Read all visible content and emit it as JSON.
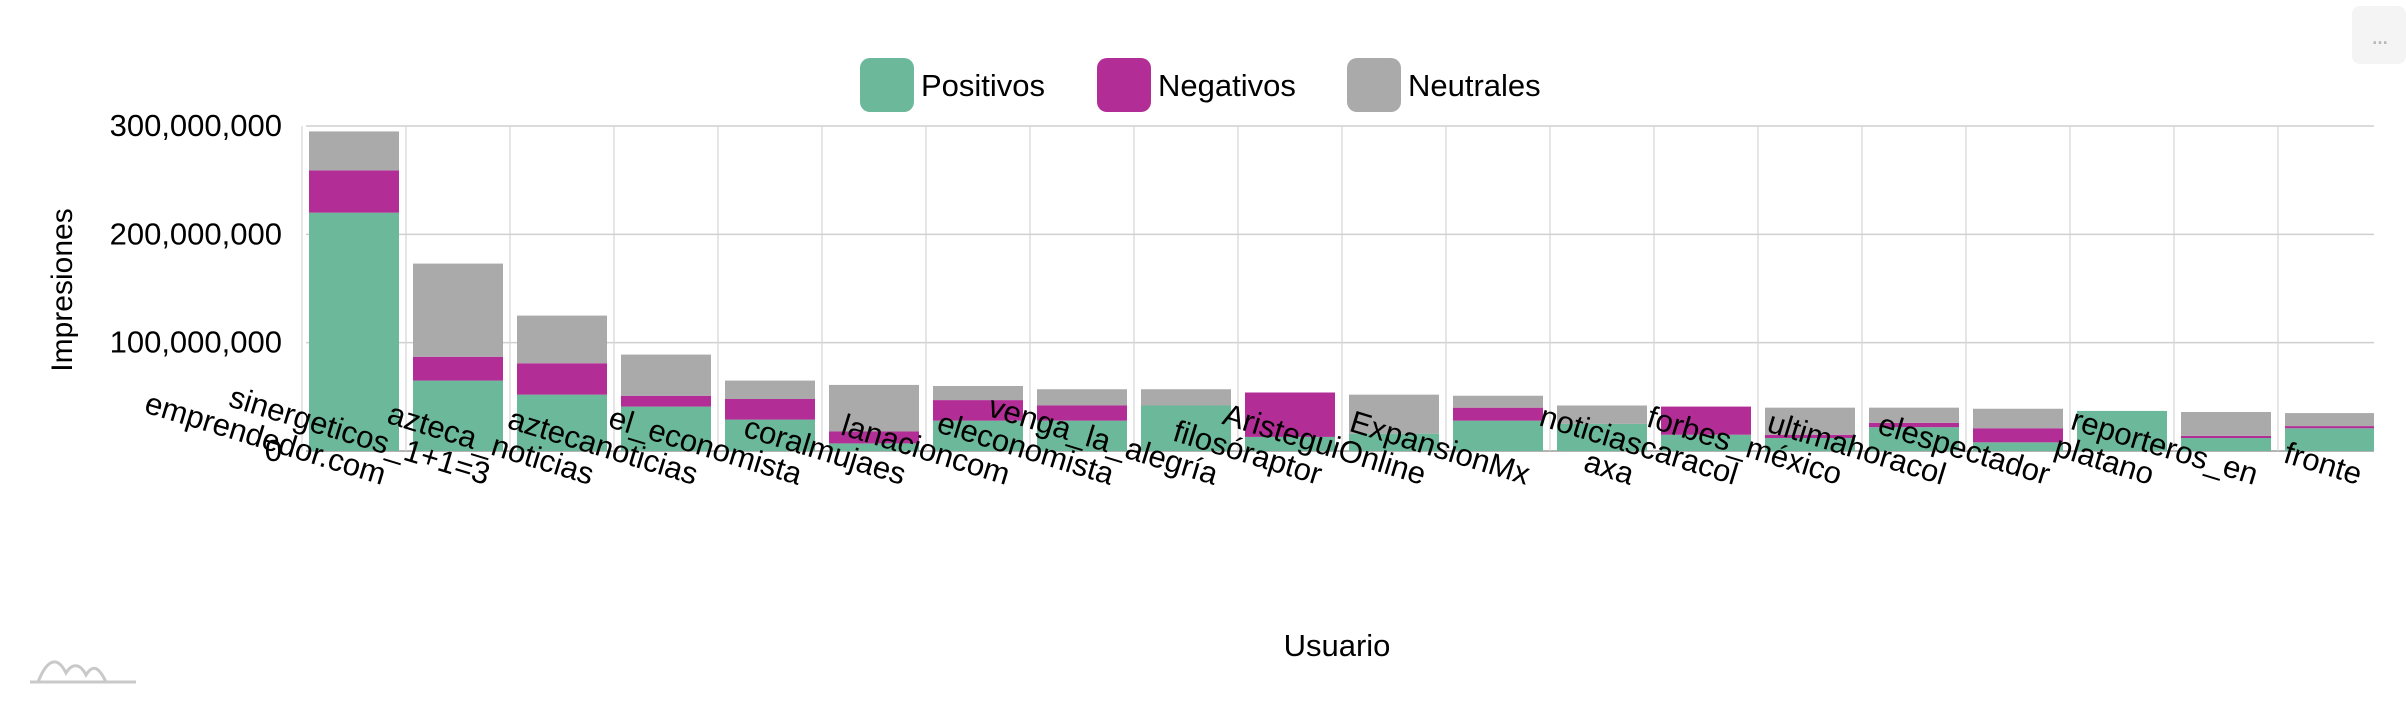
{
  "chart_data": {
    "type": "bar",
    "stacked": true,
    "title": "",
    "xlabel": "Usuario",
    "ylabel": "Impresiones",
    "ylim": [
      0,
      300000000
    ],
    "yticks": [
      0,
      100000000,
      200000000,
      300000000
    ],
    "ytick_labels": [
      "0",
      "100,000,000",
      "200,000,000",
      "300,000,000"
    ],
    "grid": true,
    "legend_position": "top",
    "categories": [
      "emprendedor.com",
      "sinergeticos_1+1=3",
      "azteca_noticias",
      "aztecanoticias",
      "el_economista",
      "coralmujaes",
      "lanacioncom",
      "eleconomista",
      "venga_la_alegría",
      "filosóraptor",
      "AristeguiOnline",
      "ExpansionMx",
      "axa",
      "noticiascaracol",
      "forbes_méxico",
      "ultimahoracol",
      "elespectador",
      "platano",
      "reporteros_en",
      "fronte"
    ],
    "series": [
      {
        "name": "Positivos",
        "color": "#6bb89a",
        "values": [
          220000000,
          65000000,
          52000000,
          41000000,
          29000000,
          7000000,
          28000000,
          28000000,
          42000000,
          13000000,
          16000000,
          28000000,
          25000000,
          15000000,
          12000000,
          22000000,
          8000000,
          37000000,
          12000000,
          21000000
        ]
      },
      {
        "name": "Negativos",
        "color": "#b22e96",
        "values": [
          39000000,
          22000000,
          29000000,
          10000000,
          19000000,
          11000000,
          19000000,
          14000000,
          0,
          41000000,
          0,
          12000000,
          0,
          26000000,
          3000000,
          4000000,
          13000000,
          0,
          2000000,
          2000000
        ]
      },
      {
        "name": "Neutrales",
        "color": "#aaaaaa",
        "values": [
          36000000,
          86000000,
          44000000,
          38000000,
          17000000,
          43000000,
          13000000,
          15000000,
          15000000,
          0,
          36000000,
          11000000,
          17000000,
          0,
          25000000,
          14000000,
          18000000,
          0,
          22000000,
          12000000
        ]
      }
    ]
  },
  "ui": {
    "menu_label": "..."
  }
}
